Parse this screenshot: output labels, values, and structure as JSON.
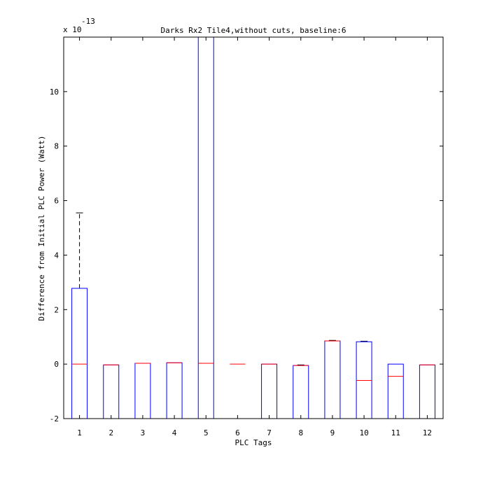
{
  "chart_data": {
    "type": "box",
    "title": "Darks Rx2 Tile4,without cuts, baseline:6",
    "xlabel": "PLC Tags",
    "ylabel": "Difference from Initial PLC Power (Watt)",
    "y_exponent_label": "x 10",
    "y_exponent": "-13",
    "xlim": [
      0.5,
      12.5
    ],
    "ylim": [
      -2,
      12
    ],
    "x_ticks": [
      1,
      2,
      3,
      4,
      5,
      6,
      7,
      8,
      9,
      10,
      11,
      12
    ],
    "y_ticks": [
      -2,
      0,
      2,
      4,
      6,
      8,
      10
    ],
    "grid": false,
    "colors": {
      "box": "#0000ff",
      "median": "#ff0000",
      "whisker": "#000000"
    },
    "boxes": [
      {
        "tag": 1,
        "q1": -2,
        "q3": 2.78,
        "median": 0,
        "whisker_high": 5.55
      },
      {
        "tag": 2,
        "q1": -2,
        "q3": -0.03,
        "median": -0.03
      },
      {
        "tag": 3,
        "q1": -2,
        "q3": 0.03,
        "median": 0.03
      },
      {
        "tag": 4,
        "q1": -2,
        "q3": 0.05,
        "median": 0.05
      },
      {
        "tag": 5,
        "q1": -2,
        "q3": 12,
        "median": 0.03
      },
      {
        "tag": 6,
        "q1": 0,
        "q3": 0,
        "median": 0
      },
      {
        "tag": 7,
        "q1": -2,
        "q3": 0.0,
        "median": 0.0
      },
      {
        "tag": 8,
        "q1": -2,
        "q3": -0.05,
        "median": -0.05,
        "whisker_high": -0.03
      },
      {
        "tag": 9,
        "q1": -2,
        "q3": 0.85,
        "median": 0.85,
        "whisker_high": 0.87
      },
      {
        "tag": 10,
        "q1": -2,
        "q3": 0.82,
        "median": -0.6,
        "whisker_high": 0.84
      },
      {
        "tag": 11,
        "q1": -2,
        "q3": 0.0,
        "median": -0.45
      },
      {
        "tag": 12,
        "q1": -2,
        "q3": -0.03,
        "median": -0.03
      }
    ]
  }
}
